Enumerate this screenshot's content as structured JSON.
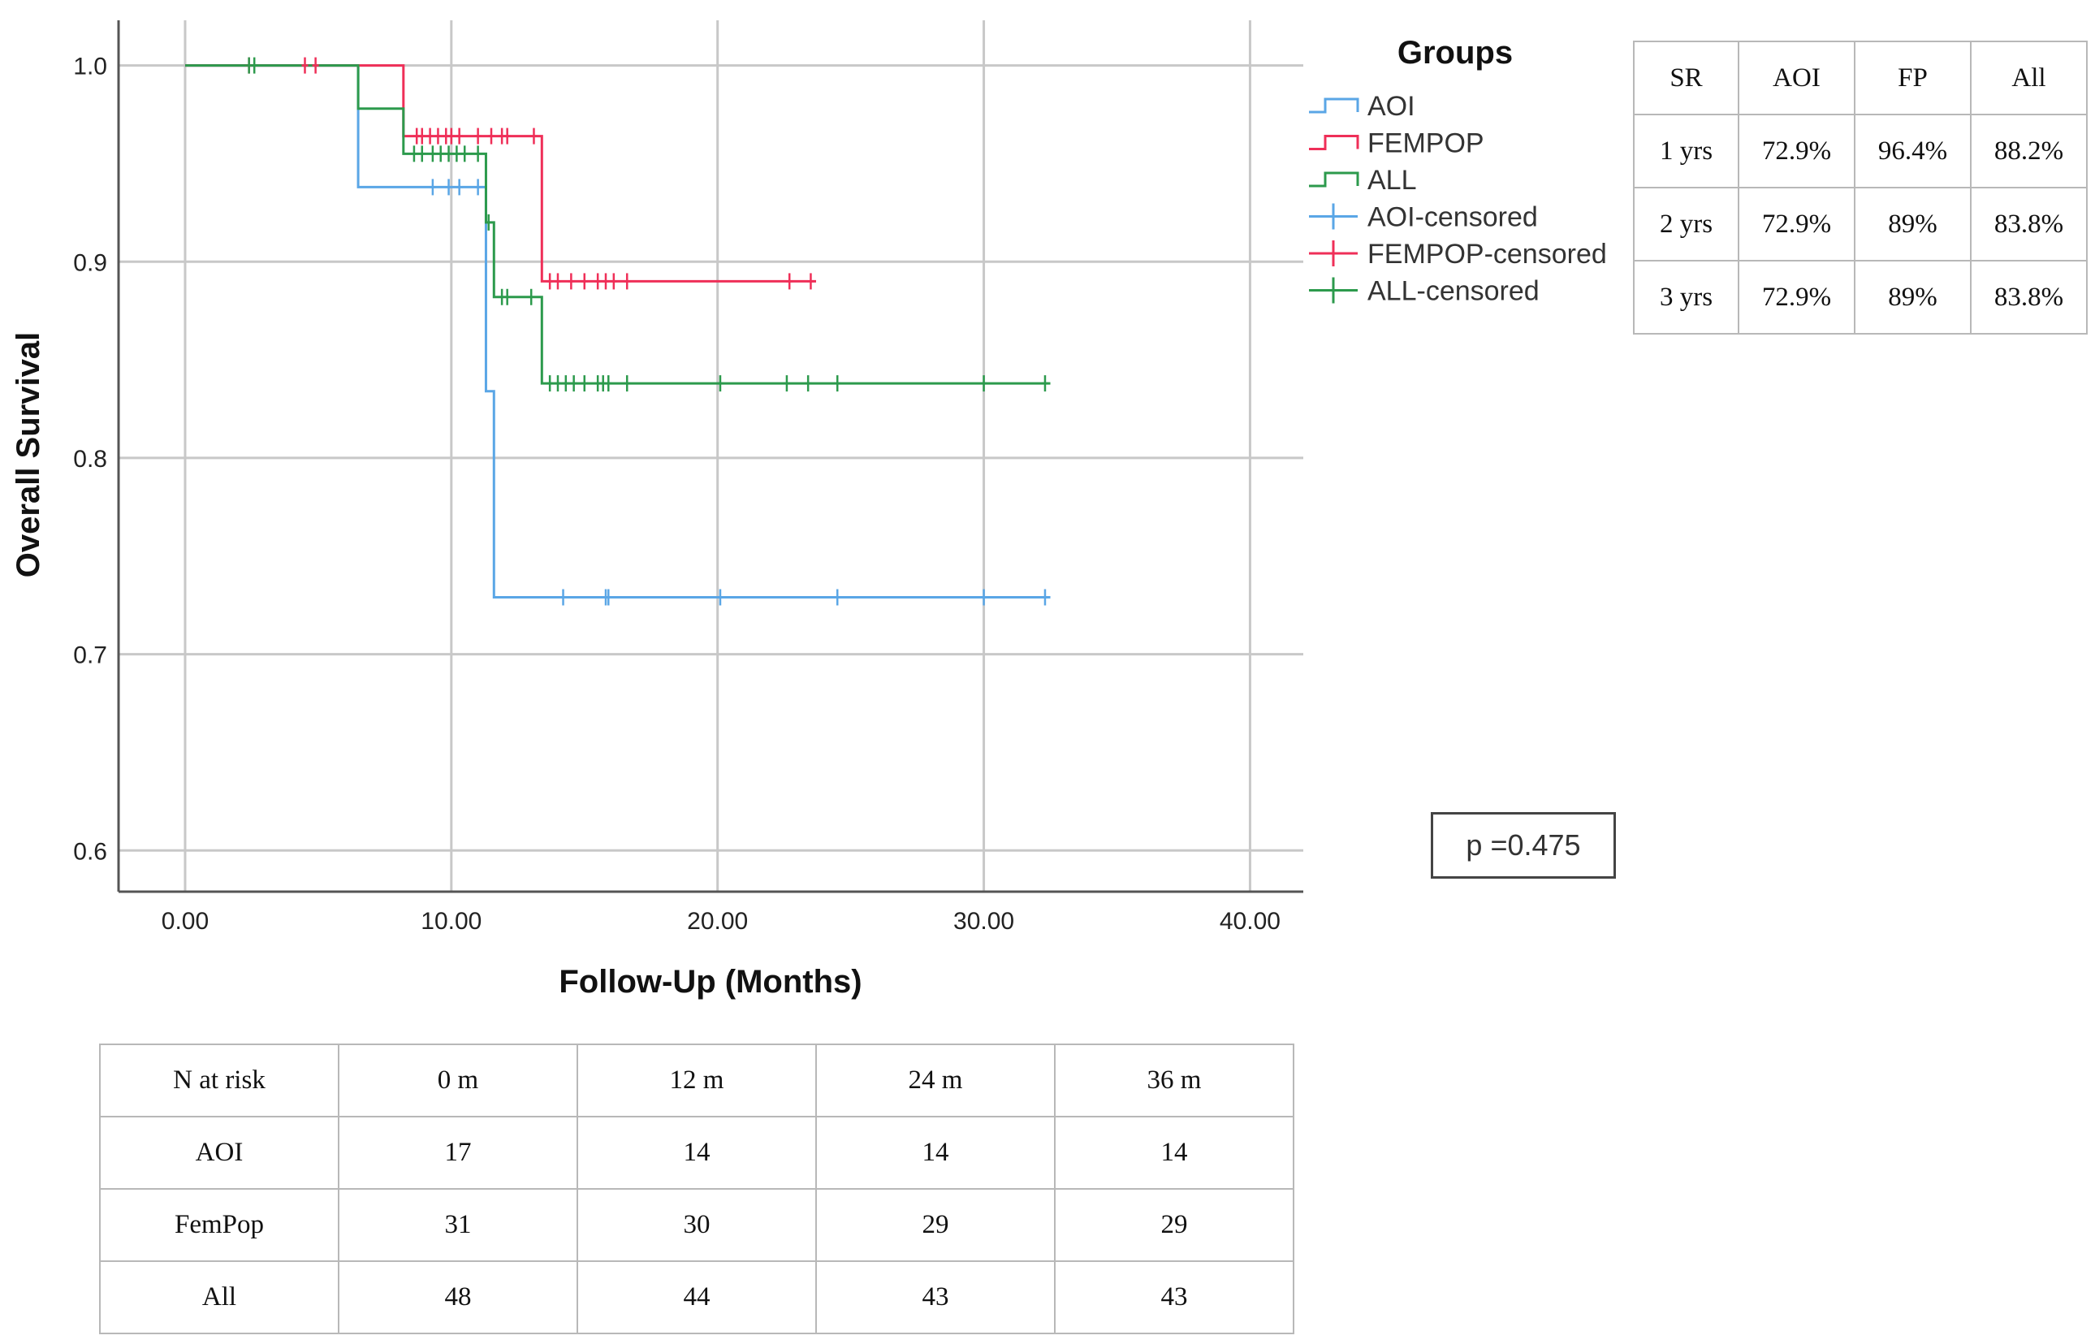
{
  "chart_data": {
    "type": "line",
    "subtype": "kaplan-meier",
    "xlabel": "Follow-Up (Months)",
    "ylabel": "Overall Survival",
    "xlim": [
      -2.5,
      42
    ],
    "ylim": [
      0.579,
      1.023
    ],
    "xticks": [
      0,
      10,
      20,
      30,
      40
    ],
    "xtick_labels": [
      "0.00",
      "10.00",
      "20.00",
      "30.00",
      "40.00"
    ],
    "yticks": [
      0.6,
      0.7,
      0.8,
      0.9,
      1.0
    ],
    "ytick_labels": [
      "0.6",
      "0.7",
      "0.8",
      "0.9",
      "1.0"
    ],
    "grid": true,
    "legend": {
      "title": "Groups",
      "placement": "right",
      "entries": [
        {
          "label": "AOI",
          "color": "#5aa6e6",
          "kind": "line"
        },
        {
          "label": "FEMPOP",
          "color": "#ef2f58",
          "kind": "line"
        },
        {
          "label": "ALL",
          "color": "#2c9a4c",
          "kind": "line"
        },
        {
          "label": "AOI-censored",
          "color": "#5aa6e6",
          "kind": "cross"
        },
        {
          "label": "FEMPOP-censored",
          "color": "#ef2f58",
          "kind": "cross"
        },
        {
          "label": "ALL-censored",
          "color": "#2c9a4c",
          "kind": "cross"
        }
      ]
    },
    "series": [
      {
        "name": "AOI",
        "color": "#5aa6e6",
        "steps": [
          [
            0,
            1.0
          ],
          [
            6.5,
            0.938
          ],
          [
            11.3,
            0.834
          ],
          [
            11.6,
            0.729
          ],
          [
            32.5,
            0.729
          ]
        ],
        "censored": [
          [
            9.3,
            0.938
          ],
          [
            9.9,
            0.938
          ],
          [
            10.3,
            0.938
          ],
          [
            11.0,
            0.938
          ],
          [
            14.2,
            0.729
          ],
          [
            15.8,
            0.729
          ],
          [
            15.9,
            0.729
          ],
          [
            20.1,
            0.729
          ],
          [
            24.5,
            0.729
          ],
          [
            30.0,
            0.729
          ],
          [
            32.3,
            0.729
          ]
        ]
      },
      {
        "name": "FEMPOP",
        "color": "#ef2f58",
        "steps": [
          [
            0,
            1.0
          ],
          [
            8.2,
            0.964
          ],
          [
            13.4,
            0.89
          ],
          [
            23.7,
            0.89
          ]
        ],
        "censored": [
          [
            2.4,
            1.0
          ],
          [
            4.5,
            1.0
          ],
          [
            4.9,
            1.0
          ],
          [
            8.7,
            0.964
          ],
          [
            8.9,
            0.964
          ],
          [
            9.2,
            0.964
          ],
          [
            9.5,
            0.964
          ],
          [
            9.8,
            0.964
          ],
          [
            10.0,
            0.964
          ],
          [
            10.3,
            0.964
          ],
          [
            11.0,
            0.964
          ],
          [
            11.5,
            0.964
          ],
          [
            11.9,
            0.964
          ],
          [
            12.1,
            0.964
          ],
          [
            13.1,
            0.964
          ],
          [
            13.7,
            0.89
          ],
          [
            14.0,
            0.89
          ],
          [
            14.5,
            0.89
          ],
          [
            15.0,
            0.89
          ],
          [
            15.5,
            0.89
          ],
          [
            15.8,
            0.89
          ],
          [
            16.1,
            0.89
          ],
          [
            16.6,
            0.89
          ],
          [
            22.7,
            0.89
          ],
          [
            23.5,
            0.89
          ]
        ]
      },
      {
        "name": "ALL",
        "color": "#2c9a4c",
        "steps": [
          [
            0,
            1.0
          ],
          [
            6.5,
            0.978
          ],
          [
            8.2,
            0.955
          ],
          [
            11.3,
            0.92
          ],
          [
            11.6,
            0.882
          ],
          [
            13.4,
            0.838
          ],
          [
            32.5,
            0.838
          ]
        ],
        "censored": [
          [
            2.4,
            1.0
          ],
          [
            2.6,
            1.0
          ],
          [
            8.6,
            0.955
          ],
          [
            8.9,
            0.955
          ],
          [
            9.3,
            0.955
          ],
          [
            9.6,
            0.955
          ],
          [
            9.9,
            0.955
          ],
          [
            10.2,
            0.955
          ],
          [
            10.5,
            0.955
          ],
          [
            11.0,
            0.955
          ],
          [
            11.4,
            0.92
          ],
          [
            11.9,
            0.882
          ],
          [
            12.1,
            0.882
          ],
          [
            13.0,
            0.882
          ],
          [
            13.7,
            0.838
          ],
          [
            14.0,
            0.838
          ],
          [
            14.3,
            0.838
          ],
          [
            14.6,
            0.838
          ],
          [
            15.0,
            0.838
          ],
          [
            15.5,
            0.838
          ],
          [
            15.7,
            0.838
          ],
          [
            15.9,
            0.838
          ],
          [
            16.6,
            0.838
          ],
          [
            20.1,
            0.838
          ],
          [
            22.6,
            0.838
          ],
          [
            23.4,
            0.838
          ],
          [
            24.5,
            0.838
          ],
          [
            30.0,
            0.838
          ],
          [
            32.3,
            0.838
          ]
        ]
      }
    ]
  },
  "survival_table": {
    "headers": [
      "SR",
      "AOI",
      "FP",
      "All"
    ],
    "rows": [
      [
        "1 yrs",
        "72.9%",
        "96.4%",
        "88.2%"
      ],
      [
        "2 yrs",
        "72.9%",
        "89%",
        "83.8%"
      ],
      [
        "3 yrs",
        "72.9%",
        "89%",
        "83.8%"
      ]
    ]
  },
  "risk_table": {
    "headers": [
      "N at risk",
      "0 m",
      "12 m",
      "24 m",
      "36 m"
    ],
    "rows": [
      [
        "AOI",
        "17",
        "14",
        "14",
        "14"
      ],
      [
        "FemPop",
        "31",
        "30",
        "29",
        "29"
      ],
      [
        "All",
        "48",
        "44",
        "43",
        "43"
      ]
    ]
  },
  "p_value": "p =0.475"
}
